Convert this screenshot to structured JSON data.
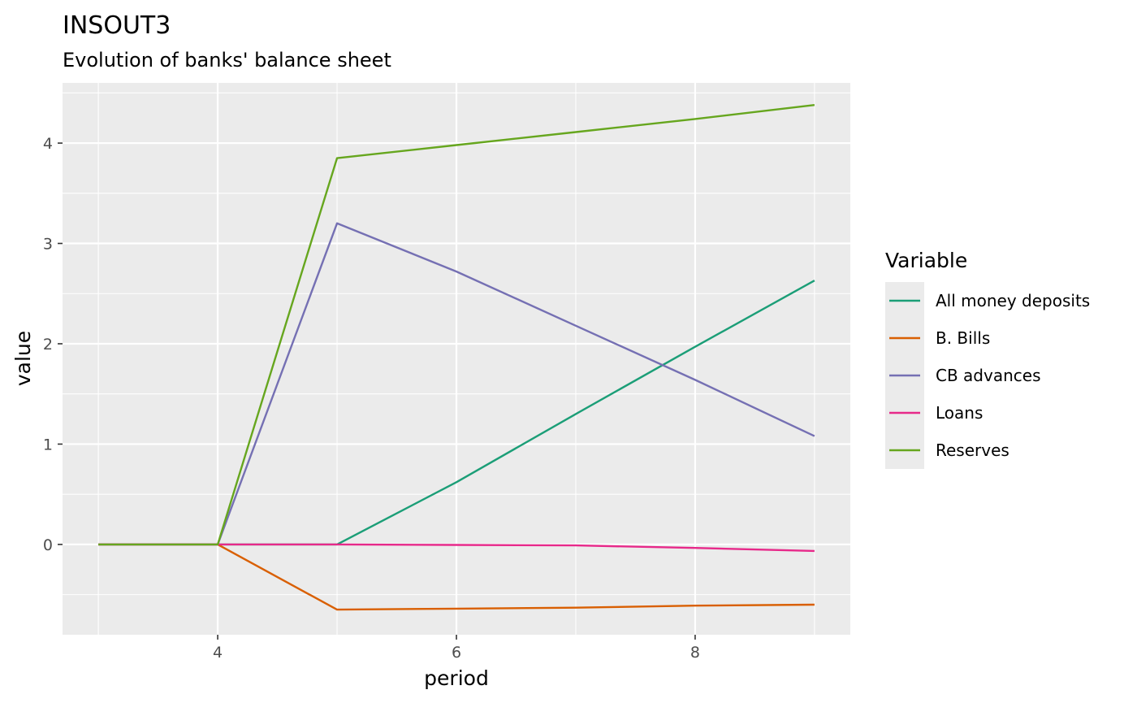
{
  "chart_data": {
    "type": "line",
    "title": "INSOUT3",
    "subtitle": "Evolution of banks' balance sheet",
    "xlabel": "period",
    "ylabel": "value",
    "xlim": [
      2.7,
      9.3
    ],
    "ylim": [
      -0.9,
      4.6
    ],
    "x_ticks": [
      4,
      6,
      8
    ],
    "y_ticks": [
      0,
      1,
      2,
      3,
      4
    ],
    "grid": true,
    "legend": {
      "title": "Variable",
      "placement": "right"
    },
    "x": [
      3,
      4,
      5,
      6,
      7,
      8,
      9
    ],
    "series": [
      {
        "name": "All money deposits",
        "color": "#1b9e77",
        "values": [
          0,
          0,
          0,
          0.62,
          1.3,
          1.97,
          2.63
        ]
      },
      {
        "name": "B. Bills",
        "color": "#d95f02",
        "values": [
          0,
          0,
          -0.65,
          -0.64,
          -0.63,
          -0.61,
          -0.6
        ]
      },
      {
        "name": "CB advances",
        "color": "#7570b3",
        "values": [
          0,
          0,
          3.2,
          2.72,
          2.18,
          1.64,
          1.08
        ]
      },
      {
        "name": "Loans",
        "color": "#e7298a",
        "values": [
          0,
          0,
          0,
          -0.005,
          -0.01,
          -0.035,
          -0.065
        ]
      },
      {
        "name": "Reserves",
        "color": "#66a61e",
        "values": [
          0,
          0,
          3.85,
          3.98,
          4.11,
          4.24,
          4.38
        ]
      }
    ]
  }
}
